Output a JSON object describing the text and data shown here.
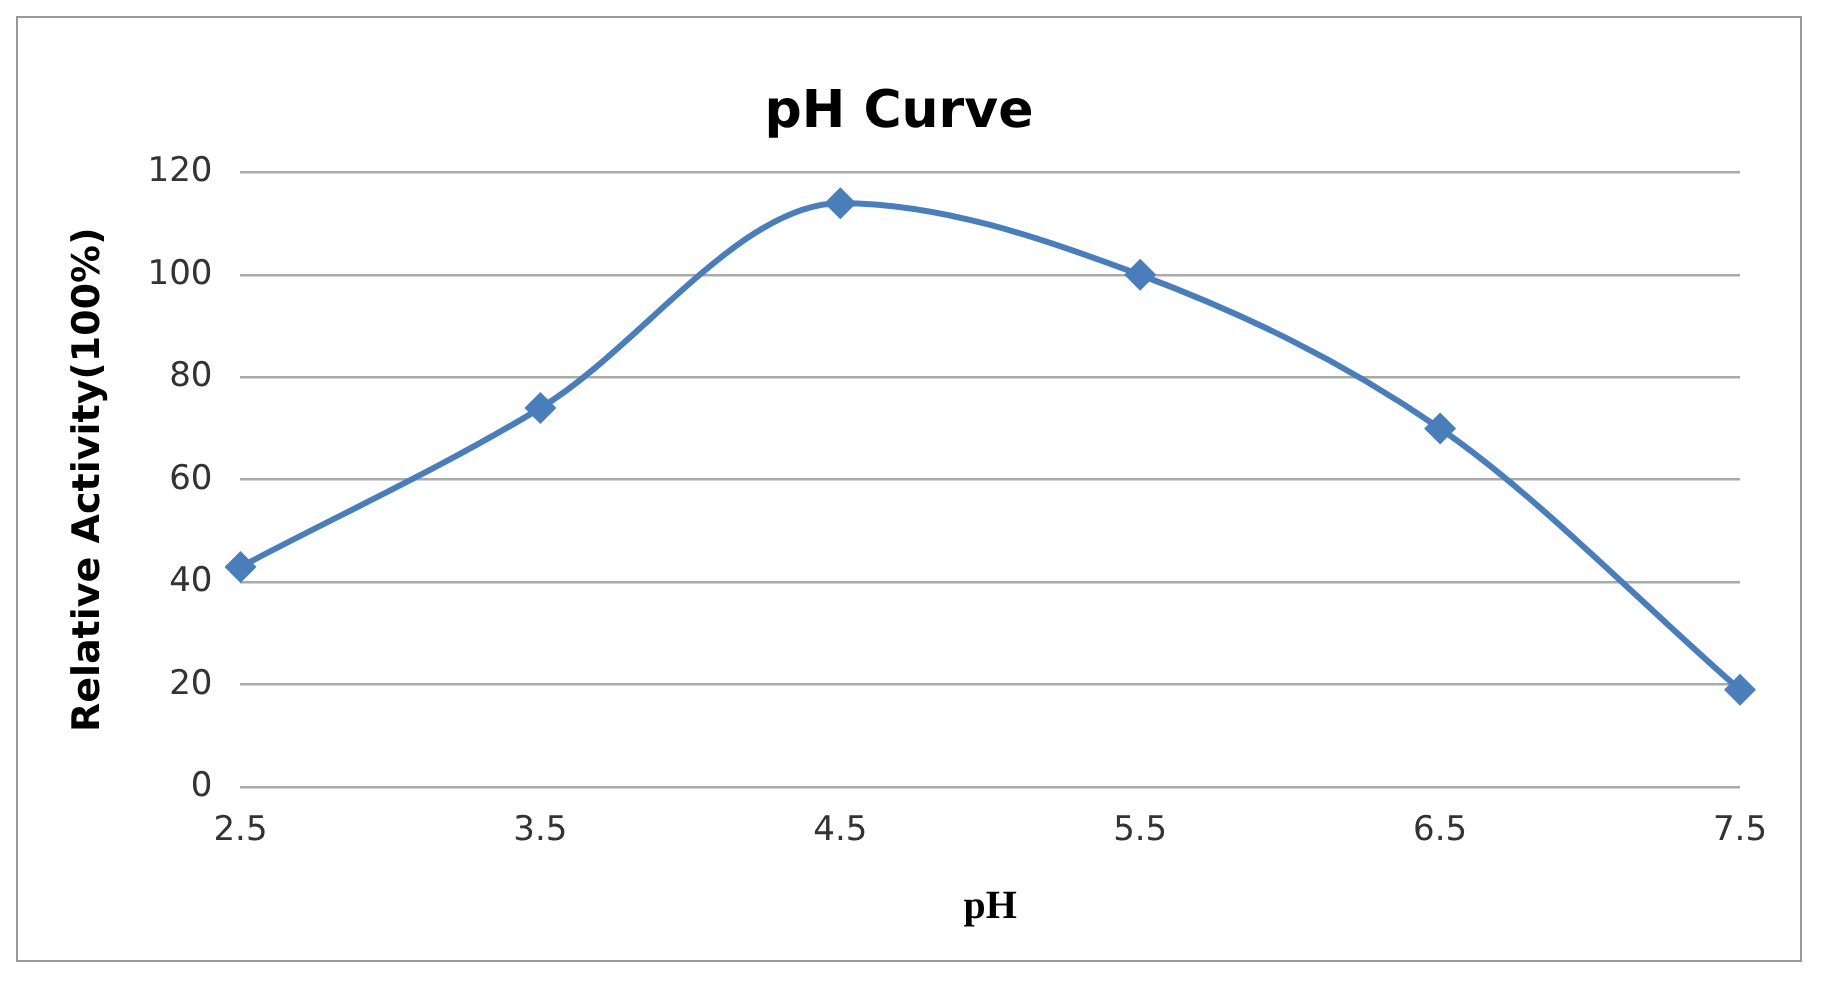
{
  "chart_data": {
    "type": "line",
    "title": "pH Curve",
    "xlabel": "pH",
    "ylabel": "Relative Activity(100%)",
    "categories": [
      "2.5",
      "3.5",
      "4.5",
      "5.5",
      "6.5",
      "7.5"
    ],
    "series": [
      {
        "color": "#4a7ebb",
        "values": [
          43,
          74,
          114,
          100,
          70,
          19
        ]
      }
    ],
    "ylim": [
      0,
      120
    ],
    "yticks": [
      0,
      20,
      40,
      60,
      80,
      100,
      120
    ],
    "grid": "y",
    "legend": false,
    "marker": "diamond",
    "line_style": "solid"
  }
}
